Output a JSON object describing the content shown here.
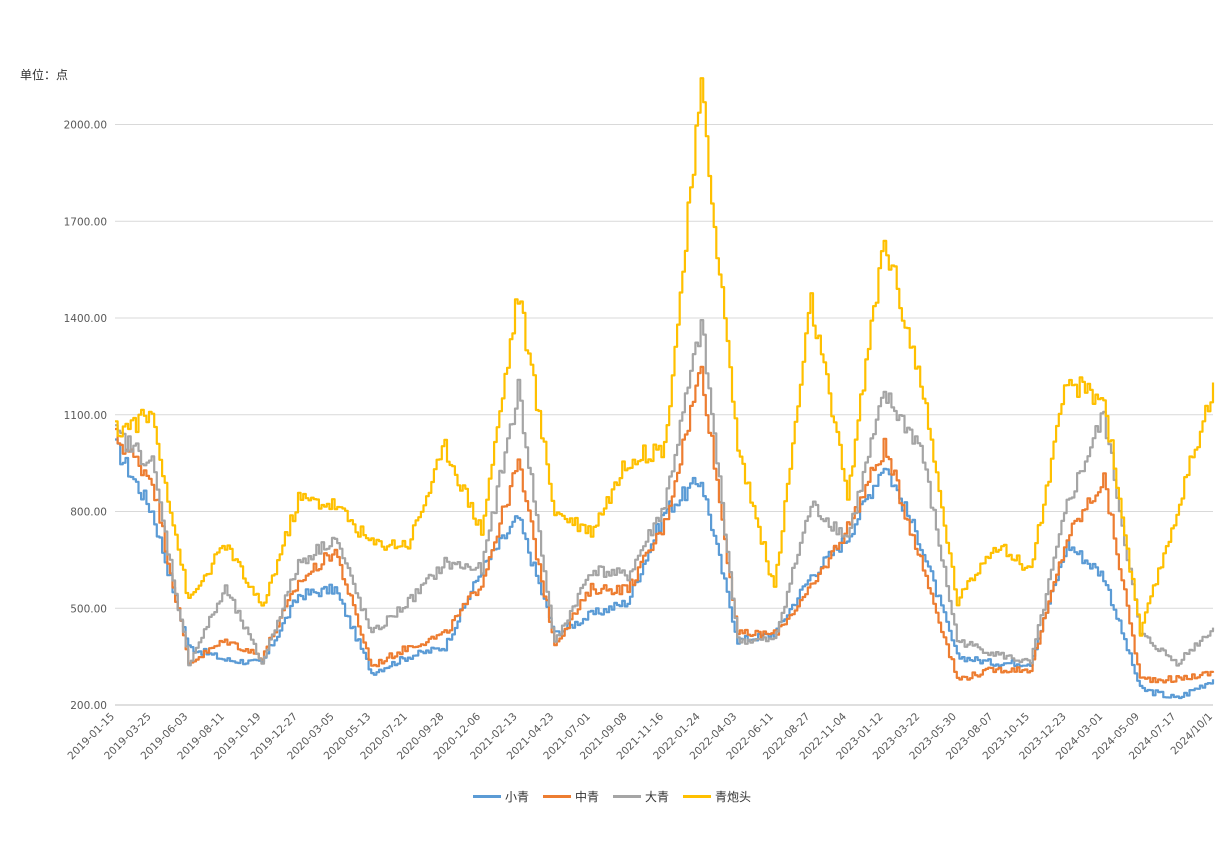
{
  "chart_data": {
    "type": "line",
    "unit_label": "单位：点",
    "ylim": [
      200,
      2200
    ],
    "yticks": [
      "200.00",
      "500.00",
      "800.00",
      "1100.00",
      "1400.00",
      "1700.00",
      "2000.00"
    ],
    "ytick_values": [
      200,
      500,
      800,
      1100,
      1400,
      1700,
      2000
    ],
    "grid": true,
    "legend_position": "bottom",
    "categories": [
      "2019-01-15",
      "2019-03-25",
      "2019-06-03",
      "2019-08-11",
      "2019-10-19",
      "2019-12-27",
      "2020-03-05",
      "2020-05-13",
      "2020-07-21",
      "2020-09-28",
      "2020-12-06",
      "2021-02-13",
      "2021-04-23",
      "2021-07-01",
      "2021-09-08",
      "2021-11-16",
      "2022-01-24",
      "2022-04-03",
      "2022-06-11",
      "2022-08-27",
      "2022-11-04",
      "2023-01-12",
      "2023-03-22",
      "2023-05-30",
      "2023-08-07",
      "2023-10-15",
      "2023-12-23",
      "2024-03-01",
      "2024-05-09",
      "2024-07-17",
      "2024/10/1"
    ],
    "series": [
      {
        "name": "小青",
        "color": "#5B9BD5",
        "values": [
          1000,
          800,
          380,
          340,
          330,
          540,
          560,
          300,
          350,
          380,
          620,
          780,
          420,
          480,
          520,
          800,
          900,
          400,
          420,
          600,
          720,
          950,
          700,
          350,
          330,
          330,
          700,
          600,
          250,
          220,
          280
        ]
      },
      {
        "name": "中青",
        "color": "#ED7D31",
        "values": [
          1030,
          900,
          330,
          400,
          350,
          580,
          680,
          320,
          380,
          420,
          580,
          950,
          390,
          560,
          560,
          760,
          1250,
          420,
          420,
          560,
          750,
          1000,
          650,
          280,
          310,
          310,
          720,
          900,
          280,
          280,
          300
        ]
      },
      {
        "name": "大青",
        "color": "#A5A5A5",
        "values": [
          1040,
          950,
          330,
          560,
          330,
          640,
          720,
          420,
          520,
          640,
          620,
          1180,
          390,
          620,
          600,
          820,
          1380,
          400,
          400,
          820,
          720,
          1160,
          1000,
          400,
          360,
          330,
          820,
          1100,
          420,
          330,
          440
        ]
      },
      {
        "name": "青炮头",
        "color": "#FFC000",
        "values": [
          1050,
          1100,
          520,
          700,
          500,
          840,
          820,
          700,
          700,
          1000,
          740,
          1480,
          800,
          740,
          960,
          1000,
          2100,
          1000,
          560,
          1450,
          850,
          1650,
          1200,
          520,
          700,
          620,
          1200,
          1150,
          420,
          800,
          1200
        ]
      }
    ]
  }
}
